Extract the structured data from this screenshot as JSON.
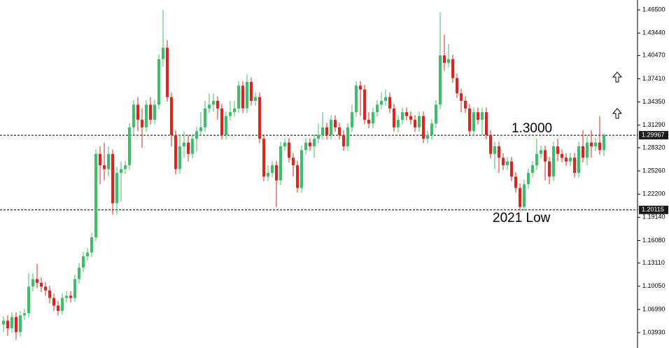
{
  "chart_data": {
    "type": "candlestick",
    "up_color": "#3dbf6a",
    "down_color": "#e3231b",
    "ylim": [
      1.0255,
      1.478
    ],
    "yticks": [
      {
        "value": 1.465,
        "label": "1.46500"
      },
      {
        "value": 1.4344,
        "label": "1.43440"
      },
      {
        "value": 1.4047,
        "label": "1.40470"
      },
      {
        "value": 1.3741,
        "label": "1.37410"
      },
      {
        "value": 1.3435,
        "label": "1.34350"
      },
      {
        "value": 1.3129,
        "label": "1.31290"
      },
      {
        "value": 1.2832,
        "label": "1.28320"
      },
      {
        "value": 1.2526,
        "label": "1.25260"
      },
      {
        "value": 1.222,
        "label": "1.22200"
      },
      {
        "value": 1.1914,
        "label": "1.19140"
      },
      {
        "value": 1.1608,
        "label": "1.16080"
      },
      {
        "value": 1.1311,
        "label": "1.13110"
      },
      {
        "value": 1.1005,
        "label": "1.10050"
      },
      {
        "value": 1.0699,
        "label": "1.06990"
      },
      {
        "value": 1.0393,
        "label": "1.03930"
      }
    ],
    "levels": [
      1.29967,
      1.20115
    ],
    "annotations": [
      "1.3000",
      "2021 Low"
    ],
    "candles": [
      [
        1.05,
        1.061,
        1.04,
        1.055
      ],
      [
        1.055,
        1.062,
        1.035,
        1.045
      ],
      [
        1.045,
        1.066,
        1.039,
        1.06
      ],
      [
        1.06,
        1.066,
        1.03,
        1.04
      ],
      [
        1.04,
        1.068,
        1.034,
        1.062
      ],
      [
        1.062,
        1.071,
        1.056,
        1.065
      ],
      [
        1.065,
        1.118,
        1.059,
        1.1
      ],
      [
        1.1,
        1.118,
        1.094,
        1.11
      ],
      [
        1.11,
        1.13,
        1.098,
        1.105
      ],
      [
        1.105,
        1.112,
        1.093,
        1.1
      ],
      [
        1.1,
        1.106,
        1.088,
        1.095
      ],
      [
        1.095,
        1.101,
        1.078,
        1.085
      ],
      [
        1.085,
        1.091,
        1.068,
        1.075
      ],
      [
        1.075,
        1.081,
        1.062,
        1.068
      ],
      [
        1.068,
        1.091,
        1.063,
        1.085
      ],
      [
        1.085,
        1.094,
        1.079,
        1.088
      ],
      [
        1.088,
        1.094,
        1.079,
        1.085
      ],
      [
        1.085,
        1.116,
        1.08,
        1.11
      ],
      [
        1.11,
        1.131,
        1.104,
        1.125
      ],
      [
        1.125,
        1.146,
        1.119,
        1.14
      ],
      [
        1.14,
        1.151,
        1.134,
        1.145
      ],
      [
        1.145,
        1.171,
        1.139,
        1.165
      ],
      [
        1.165,
        1.281,
        1.16,
        1.275
      ],
      [
        1.275,
        1.285,
        1.235,
        1.26
      ],
      [
        1.26,
        1.29,
        1.24,
        1.255
      ],
      [
        1.255,
        1.285,
        1.245,
        1.275
      ],
      [
        1.275,
        1.281,
        1.195,
        1.21
      ],
      [
        1.21,
        1.258,
        1.195,
        1.25
      ],
      [
        1.25,
        1.265,
        1.212,
        1.255
      ],
      [
        1.255,
        1.266,
        1.249,
        1.26
      ],
      [
        1.26,
        1.316,
        1.254,
        1.31
      ],
      [
        1.31,
        1.346,
        1.3,
        1.34
      ],
      [
        1.34,
        1.35,
        1.305,
        1.32
      ],
      [
        1.32,
        1.335,
        1.283,
        1.31
      ],
      [
        1.31,
        1.346,
        1.304,
        1.34
      ],
      [
        1.34,
        1.35,
        1.314,
        1.32
      ],
      [
        1.32,
        1.346,
        1.314,
        1.34
      ],
      [
        1.34,
        1.406,
        1.334,
        1.4
      ],
      [
        1.4,
        1.465,
        1.39,
        1.415
      ],
      [
        1.415,
        1.425,
        1.344,
        1.35
      ],
      [
        1.35,
        1.356,
        1.285,
        1.3
      ],
      [
        1.3,
        1.306,
        1.248,
        1.255
      ],
      [
        1.255,
        1.3,
        1.249,
        1.285
      ],
      [
        1.285,
        1.305,
        1.27,
        1.29
      ],
      [
        1.29,
        1.3,
        1.265,
        1.275
      ],
      [
        1.275,
        1.301,
        1.269,
        1.295
      ],
      [
        1.295,
        1.311,
        1.278,
        1.305
      ],
      [
        1.305,
        1.33,
        1.299,
        1.31
      ],
      [
        1.31,
        1.345,
        1.304,
        1.335
      ],
      [
        1.335,
        1.355,
        1.329,
        1.34
      ],
      [
        1.34,
        1.355,
        1.33,
        1.345
      ],
      [
        1.345,
        1.351,
        1.32,
        1.335
      ],
      [
        1.335,
        1.341,
        1.294,
        1.3
      ],
      [
        1.3,
        1.331,
        1.294,
        1.325
      ],
      [
        1.325,
        1.345,
        1.319,
        1.33
      ],
      [
        1.33,
        1.345,
        1.324,
        1.335
      ],
      [
        1.335,
        1.371,
        1.329,
        1.365
      ],
      [
        1.365,
        1.371,
        1.329,
        1.335
      ],
      [
        1.335,
        1.38,
        1.329,
        1.37
      ],
      [
        1.37,
        1.376,
        1.339,
        1.345
      ],
      [
        1.345,
        1.356,
        1.339,
        1.35
      ],
      [
        1.35,
        1.356,
        1.289,
        1.295
      ],
      [
        1.295,
        1.301,
        1.239,
        1.245
      ],
      [
        1.245,
        1.26,
        1.239,
        1.25
      ],
      [
        1.25,
        1.266,
        1.244,
        1.26
      ],
      [
        1.26,
        1.266,
        1.205,
        1.24
      ],
      [
        1.24,
        1.291,
        1.234,
        1.285
      ],
      [
        1.285,
        1.296,
        1.279,
        1.29
      ],
      [
        1.29,
        1.296,
        1.264,
        1.27
      ],
      [
        1.27,
        1.276,
        1.245,
        1.26
      ],
      [
        1.26,
        1.266,
        1.224,
        1.23
      ],
      [
        1.23,
        1.286,
        1.224,
        1.28
      ],
      [
        1.28,
        1.296,
        1.274,
        1.29
      ],
      [
        1.29,
        1.296,
        1.279,
        1.285
      ],
      [
        1.285,
        1.301,
        1.27,
        1.295
      ],
      [
        1.295,
        1.315,
        1.289,
        1.3
      ],
      [
        1.3,
        1.33,
        1.294,
        1.31
      ],
      [
        1.31,
        1.316,
        1.294,
        1.3
      ],
      [
        1.3,
        1.326,
        1.294,
        1.32
      ],
      [
        1.32,
        1.326,
        1.304,
        1.31
      ],
      [
        1.31,
        1.316,
        1.294,
        1.3
      ],
      [
        1.3,
        1.306,
        1.279,
        1.285
      ],
      [
        1.285,
        1.316,
        1.279,
        1.31
      ],
      [
        1.31,
        1.34,
        1.304,
        1.33
      ],
      [
        1.33,
        1.371,
        1.324,
        1.365
      ],
      [
        1.365,
        1.371,
        1.325,
        1.36
      ],
      [
        1.36,
        1.366,
        1.314,
        1.32
      ],
      [
        1.32,
        1.33,
        1.309,
        1.315
      ],
      [
        1.315,
        1.336,
        1.309,
        1.33
      ],
      [
        1.33,
        1.346,
        1.324,
        1.34
      ],
      [
        1.34,
        1.356,
        1.334,
        1.345
      ],
      [
        1.345,
        1.36,
        1.339,
        1.35
      ],
      [
        1.35,
        1.356,
        1.329,
        1.335
      ],
      [
        1.335,
        1.341,
        1.304,
        1.31
      ],
      [
        1.31,
        1.326,
        1.304,
        1.32
      ],
      [
        1.32,
        1.336,
        1.314,
        1.33
      ],
      [
        1.33,
        1.336,
        1.319,
        1.325
      ],
      [
        1.325,
        1.331,
        1.314,
        1.32
      ],
      [
        1.32,
        1.326,
        1.304,
        1.31
      ],
      [
        1.31,
        1.331,
        1.304,
        1.325
      ],
      [
        1.325,
        1.331,
        1.289,
        1.295
      ],
      [
        1.295,
        1.306,
        1.289,
        1.3
      ],
      [
        1.3,
        1.321,
        1.294,
        1.315
      ],
      [
        1.315,
        1.346,
        1.309,
        1.34
      ],
      [
        1.34,
        1.462,
        1.334,
        1.405
      ],
      [
        1.405,
        1.432,
        1.385,
        1.395
      ],
      [
        1.395,
        1.42,
        1.389,
        1.4
      ],
      [
        1.4,
        1.406,
        1.369,
        1.375
      ],
      [
        1.375,
        1.381,
        1.349,
        1.355
      ],
      [
        1.355,
        1.361,
        1.33,
        1.345
      ],
      [
        1.345,
        1.351,
        1.329,
        1.335
      ],
      [
        1.335,
        1.341,
        1.299,
        1.305
      ],
      [
        1.305,
        1.336,
        1.299,
        1.33
      ],
      [
        1.33,
        1.336,
        1.314,
        1.32
      ],
      [
        1.32,
        1.336,
        1.3,
        1.33
      ],
      [
        1.33,
        1.336,
        1.294,
        1.3
      ],
      [
        1.3,
        1.306,
        1.269,
        1.275
      ],
      [
        1.275,
        1.291,
        1.255,
        1.285
      ],
      [
        1.285,
        1.291,
        1.25,
        1.27
      ],
      [
        1.27,
        1.276,
        1.254,
        1.26
      ],
      [
        1.26,
        1.271,
        1.254,
        1.265
      ],
      [
        1.265,
        1.271,
        1.239,
        1.245
      ],
      [
        1.245,
        1.251,
        1.224,
        1.23
      ],
      [
        1.23,
        1.236,
        1.2,
        1.205
      ],
      [
        1.205,
        1.241,
        1.2,
        1.235
      ],
      [
        1.235,
        1.256,
        1.229,
        1.25
      ],
      [
        1.25,
        1.266,
        1.244,
        1.26
      ],
      [
        1.26,
        1.295,
        1.254,
        1.275
      ],
      [
        1.275,
        1.286,
        1.269,
        1.28
      ],
      [
        1.28,
        1.286,
        1.24,
        1.265
      ],
      [
        1.265,
        1.271,
        1.235,
        1.245
      ],
      [
        1.245,
        1.291,
        1.239,
        1.285
      ],
      [
        1.285,
        1.295,
        1.265,
        1.275
      ],
      [
        1.275,
        1.281,
        1.264,
        1.27
      ],
      [
        1.27,
        1.276,
        1.259,
        1.265
      ],
      [
        1.265,
        1.276,
        1.259,
        1.27
      ],
      [
        1.27,
        1.276,
        1.244,
        1.25
      ],
      [
        1.25,
        1.291,
        1.244,
        1.285
      ],
      [
        1.285,
        1.306,
        1.264,
        1.27
      ],
      [
        1.27,
        1.3,
        1.26,
        1.29
      ],
      [
        1.29,
        1.306,
        1.27,
        1.285
      ],
      [
        1.285,
        1.296,
        1.279,
        1.29
      ],
      [
        1.29,
        1.325,
        1.274,
        1.28
      ],
      [
        1.28,
        1.302,
        1.272,
        1.29967
      ]
    ]
  }
}
